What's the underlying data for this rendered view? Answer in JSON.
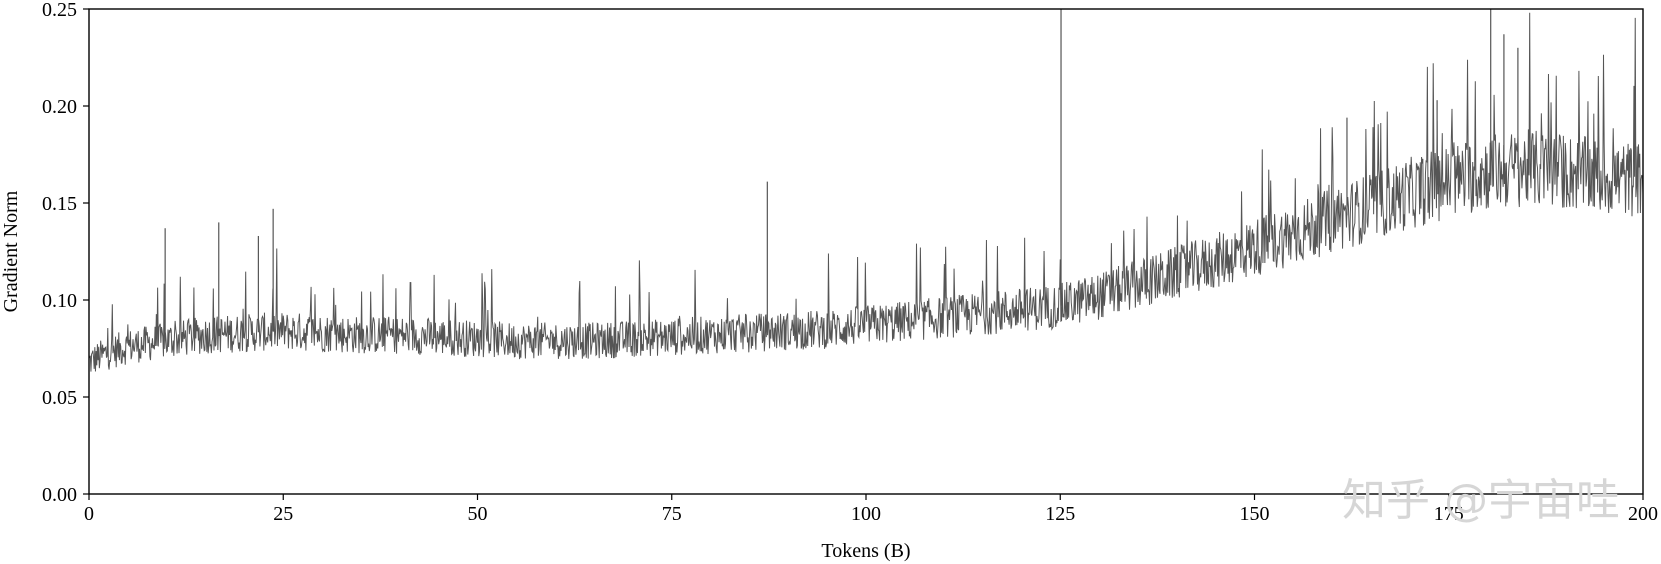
{
  "chart_data": {
    "type": "line",
    "title": "",
    "xlabel": "Tokens (B)",
    "ylabel": "Gradient Norm",
    "xlim": [
      0,
      200
    ],
    "ylim": [
      0,
      0.25
    ],
    "x_ticks": [
      0,
      25,
      50,
      75,
      100,
      125,
      150,
      175,
      200
    ],
    "x_tick_labels": [
      "0",
      "25",
      "50",
      "75",
      "100",
      "125",
      "150",
      "175",
      "200"
    ],
    "y_ticks": [
      0,
      0.05,
      0.1,
      0.15,
      0.2,
      0.25
    ],
    "y_tick_labels": [
      "0.00",
      "0.05",
      "0.10",
      "0.15",
      "0.20",
      "0.25"
    ],
    "grid": false,
    "legend": "none",
    "line_color": "#555555",
    "series": [
      {
        "x": [
          0,
          2,
          5,
          10,
          15,
          20,
          25,
          30,
          35,
          40,
          45,
          50,
          55,
          60,
          65,
          70,
          75,
          80,
          85,
          90,
          95,
          100,
          105,
          110,
          115,
          120,
          125,
          130,
          135,
          140,
          145,
          150,
          155,
          160,
          165,
          170,
          175,
          180,
          185,
          190,
          195,
          200
        ],
        "values": [
          0.068,
          0.072,
          0.076,
          0.079,
          0.082,
          0.083,
          0.084,
          0.083,
          0.082,
          0.082,
          0.081,
          0.08,
          0.079,
          0.079,
          0.079,
          0.08,
          0.081,
          0.082,
          0.083,
          0.084,
          0.085,
          0.087,
          0.089,
          0.091,
          0.093,
          0.095,
          0.097,
          0.102,
          0.108,
          0.114,
          0.12,
          0.127,
          0.134,
          0.141,
          0.148,
          0.155,
          0.161,
          0.166,
          0.168,
          0.166,
          0.163,
          0.162
        ]
      }
    ],
    "spikes": [
      {
        "x": 9.8,
        "value": 0.137
      },
      {
        "x": 16.7,
        "value": 0.14
      },
      {
        "x": 21.8,
        "value": 0.133
      },
      {
        "x": 23.7,
        "value": 0.147
      },
      {
        "x": 87.3,
        "value": 0.161
      },
      {
        "x": 125.1,
        "value": 0.25
      },
      {
        "x": 161.9,
        "value": 0.194
      },
      {
        "x": 173.5,
        "value": 0.203
      },
      {
        "x": 180.4,
        "value": 0.25
      },
      {
        "x": 182.1,
        "value": 0.237
      },
      {
        "x": 183.9,
        "value": 0.23
      }
    ]
  },
  "watermark": {
    "text": "知乎 @宇宙哇"
  }
}
